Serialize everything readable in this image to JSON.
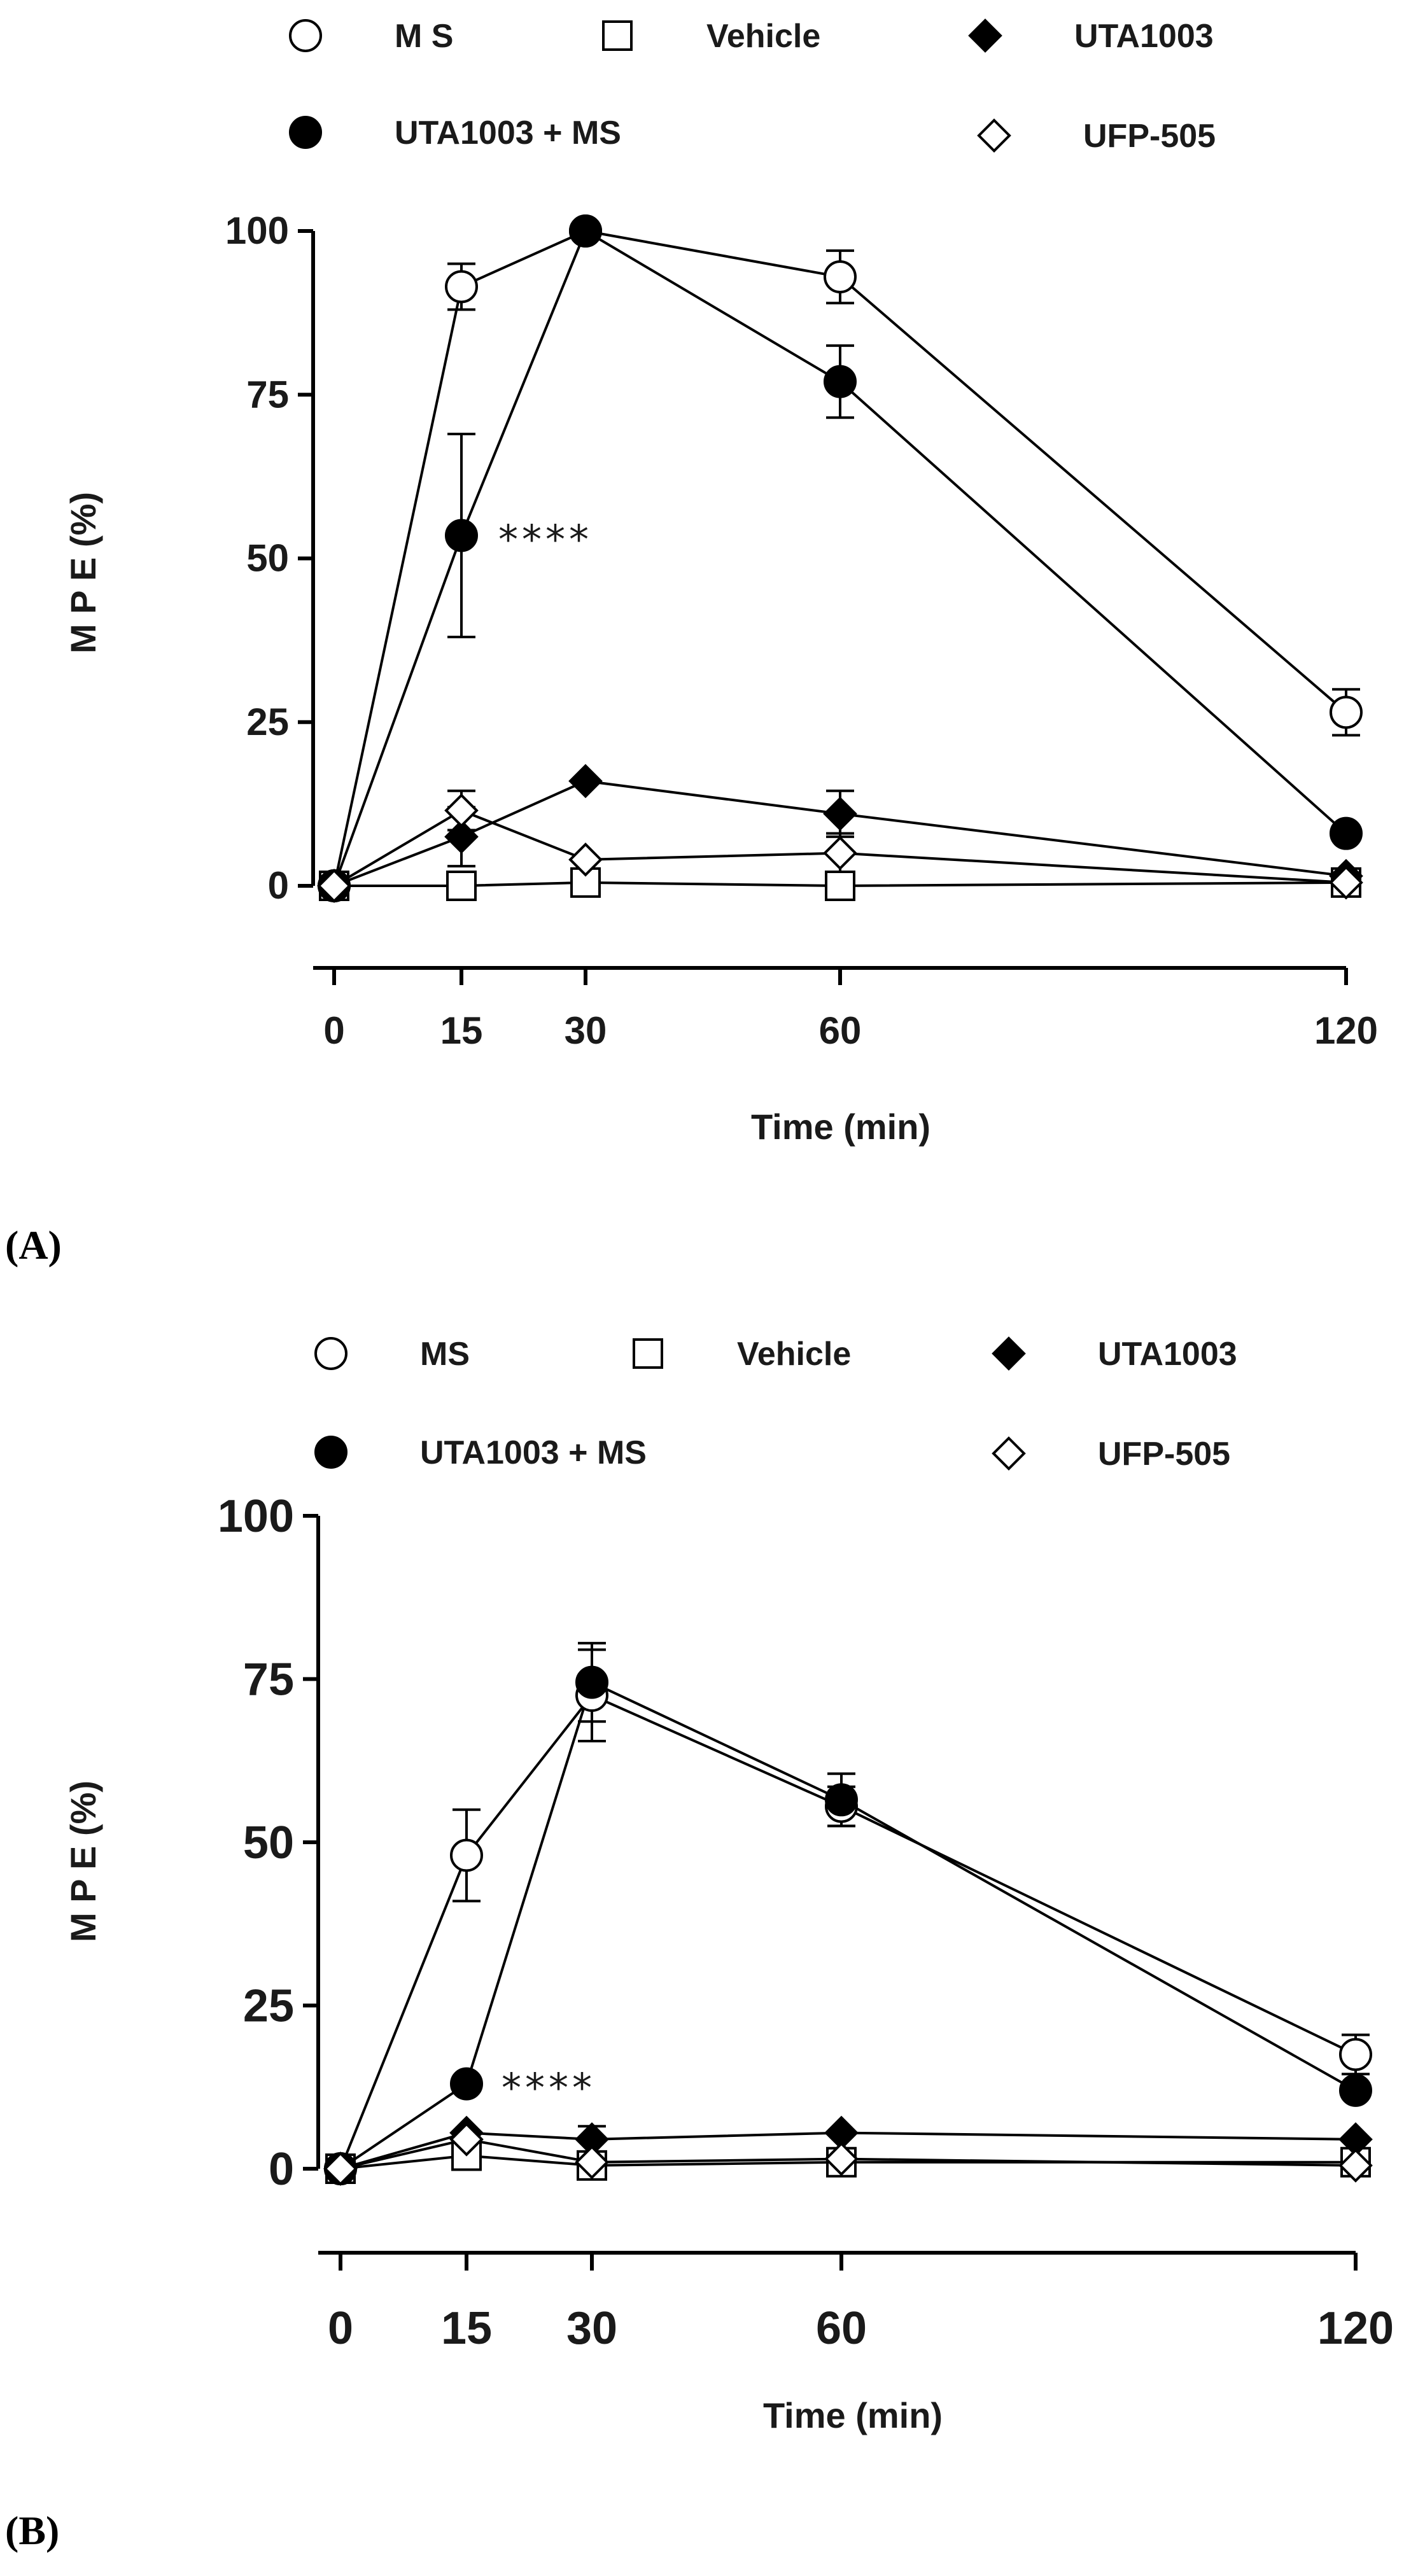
{
  "chart_data": [
    {
      "type": "line",
      "panel_label": "(A)",
      "xlabel": "Time (min)",
      "ylabel": "M P E (%)",
      "xlim": [
        0,
        120
      ],
      "ylim": [
        0,
        100
      ],
      "x": [
        0,
        15,
        30,
        60,
        120
      ],
      "x_ticks": [
        "0",
        "15",
        "30",
        "60",
        "120"
      ],
      "y_ticks": [
        "0",
        "25",
        "50",
        "75",
        "100"
      ],
      "annotation": {
        "text": "****",
        "series": "UTA1003 + MS",
        "x": 15
      },
      "series": [
        {
          "name": "M S",
          "marker": "circle-open",
          "values": [
            0,
            91.5,
            100,
            93,
            26.5
          ],
          "errors": [
            0,
            3.5,
            0,
            4,
            3.5
          ]
        },
        {
          "name": "Vehicle",
          "marker": "square-open",
          "values": [
            0,
            0,
            0.5,
            0,
            0.5
          ],
          "errors": [
            0,
            0,
            0,
            0,
            0
          ]
        },
        {
          "name": "UTA1003",
          "marker": "diamond-filled",
          "values": [
            0,
            7.5,
            16,
            11,
            1.5
          ],
          "errors": [
            0,
            4.5,
            0,
            3.5,
            0
          ]
        },
        {
          "name": "UTA1003 + MS",
          "marker": "circle-filled",
          "values": [
            0,
            53.5,
            100,
            77,
            8
          ],
          "errors": [
            0,
            15.5,
            0,
            5.5,
            0
          ]
        },
        {
          "name": "UFP-505",
          "marker": "diamond-open",
          "values": [
            0,
            11.5,
            4,
            5,
            0.5
          ],
          "errors": [
            0,
            3,
            0,
            3,
            0
          ]
        }
      ]
    },
    {
      "type": "line",
      "panel_label": "(B)",
      "xlabel": "Time (min)",
      "ylabel": "M P E (%)",
      "xlim": [
        0,
        120
      ],
      "ylim": [
        0,
        100
      ],
      "x": [
        0,
        15,
        30,
        60,
        120
      ],
      "x_ticks": [
        "0",
        "15",
        "30",
        "60",
        "120"
      ],
      "y_ticks": [
        "0",
        "25",
        "50",
        "75",
        "100"
      ],
      "annotation": {
        "text": "****",
        "series": "UTA1003 + MS",
        "x": 15
      },
      "series": [
        {
          "name": "MS",
          "marker": "circle-open",
          "values": [
            0,
            48,
            72.5,
            55.5,
            17.5
          ],
          "errors": [
            0,
            7,
            7,
            3,
            3
          ]
        },
        {
          "name": "Vehicle",
          "marker": "square-open",
          "values": [
            0,
            2,
            0.5,
            1,
            1
          ],
          "errors": [
            0,
            0,
            0,
            0,
            0
          ]
        },
        {
          "name": "UTA1003",
          "marker": "diamond-filled",
          "values": [
            0,
            5.5,
            4.5,
            5.5,
            4.5
          ],
          "errors": [
            0,
            0,
            2,
            0,
            0
          ]
        },
        {
          "name": "UTA1003 + MS",
          "marker": "circle-filled",
          "values": [
            0,
            13,
            74.5,
            56.5,
            12
          ],
          "errors": [
            0,
            0,
            6,
            4,
            0
          ]
        },
        {
          "name": "UFP-505",
          "marker": "diamond-open",
          "values": [
            0,
            4.5,
            1,
            1.5,
            0.5
          ],
          "errors": [
            0,
            0,
            0,
            0,
            0
          ]
        }
      ]
    }
  ]
}
